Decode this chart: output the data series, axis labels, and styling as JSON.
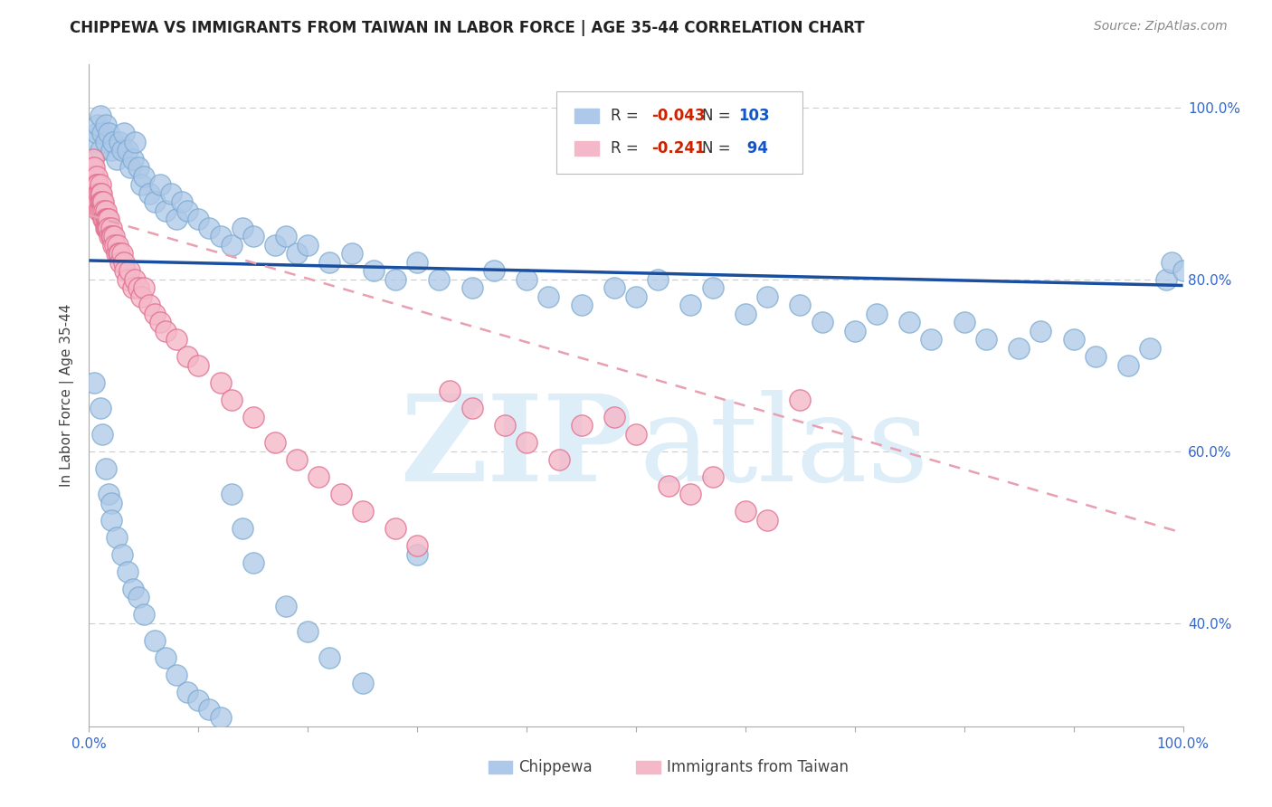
{
  "title": "CHIPPEWA VS IMMIGRANTS FROM TAIWAN IN LABOR FORCE | AGE 35-44 CORRELATION CHART",
  "source": "Source: ZipAtlas.com",
  "ylabel": "In Labor Force | Age 35-44",
  "xlim": [
    0.0,
    1.0
  ],
  "ylim": [
    0.28,
    1.05
  ],
  "blue_color": "#adc8e8",
  "blue_edge": "#7aaad0",
  "pink_color": "#f5b8c8",
  "pink_edge": "#e07090",
  "blue_line_color": "#1a4fa0",
  "pink_line_color": "#e8a0b0",
  "watermark_zip": "ZIP",
  "watermark_atlas": "atlas",
  "blue_x": [
    0.005,
    0.007,
    0.008,
    0.01,
    0.01,
    0.012,
    0.015,
    0.015,
    0.018,
    0.02,
    0.022,
    0.025,
    0.028,
    0.03,
    0.032,
    0.035,
    0.038,
    0.04,
    0.042,
    0.045,
    0.048,
    0.05,
    0.055,
    0.06,
    0.065,
    0.07,
    0.075,
    0.08,
    0.085,
    0.09,
    0.1,
    0.11,
    0.12,
    0.13,
    0.14,
    0.15,
    0.17,
    0.18,
    0.19,
    0.2,
    0.22,
    0.24,
    0.26,
    0.28,
    0.3,
    0.32,
    0.35,
    0.37,
    0.4,
    0.42,
    0.45,
    0.48,
    0.5,
    0.52,
    0.55,
    0.57,
    0.6,
    0.62,
    0.65,
    0.67,
    0.7,
    0.72,
    0.75,
    0.77,
    0.8,
    0.82,
    0.85,
    0.87,
    0.9,
    0.92,
    0.95,
    0.97,
    0.985,
    0.99,
    1.0,
    0.005,
    0.01,
    0.012,
    0.015,
    0.018,
    0.02,
    0.02,
    0.025,
    0.03,
    0.035,
    0.04,
    0.045,
    0.05,
    0.06,
    0.07,
    0.08,
    0.09,
    0.1,
    0.11,
    0.12,
    0.13,
    0.14,
    0.15,
    0.18,
    0.2,
    0.22,
    0.25,
    0.3
  ],
  "blue_y": [
    0.96,
    0.97,
    0.98,
    0.95,
    0.99,
    0.97,
    0.96,
    0.98,
    0.97,
    0.95,
    0.96,
    0.94,
    0.96,
    0.95,
    0.97,
    0.95,
    0.93,
    0.94,
    0.96,
    0.93,
    0.91,
    0.92,
    0.9,
    0.89,
    0.91,
    0.88,
    0.9,
    0.87,
    0.89,
    0.88,
    0.87,
    0.86,
    0.85,
    0.84,
    0.86,
    0.85,
    0.84,
    0.85,
    0.83,
    0.84,
    0.82,
    0.83,
    0.81,
    0.8,
    0.82,
    0.8,
    0.79,
    0.81,
    0.8,
    0.78,
    0.77,
    0.79,
    0.78,
    0.8,
    0.77,
    0.79,
    0.76,
    0.78,
    0.77,
    0.75,
    0.74,
    0.76,
    0.75,
    0.73,
    0.75,
    0.73,
    0.72,
    0.74,
    0.73,
    0.71,
    0.7,
    0.72,
    0.8,
    0.82,
    0.81,
    0.68,
    0.65,
    0.62,
    0.58,
    0.55,
    0.54,
    0.52,
    0.5,
    0.48,
    0.46,
    0.44,
    0.43,
    0.41,
    0.38,
    0.36,
    0.34,
    0.32,
    0.31,
    0.3,
    0.29,
    0.55,
    0.51,
    0.47,
    0.42,
    0.39,
    0.36,
    0.33,
    0.48
  ],
  "pink_x": [
    0.002,
    0.003,
    0.003,
    0.004,
    0.004,
    0.004,
    0.005,
    0.005,
    0.005,
    0.006,
    0.006,
    0.006,
    0.007,
    0.007,
    0.007,
    0.008,
    0.008,
    0.008,
    0.009,
    0.009,
    0.01,
    0.01,
    0.01,
    0.01,
    0.011,
    0.011,
    0.012,
    0.012,
    0.013,
    0.013,
    0.014,
    0.014,
    0.015,
    0.015,
    0.015,
    0.016,
    0.016,
    0.017,
    0.017,
    0.018,
    0.018,
    0.019,
    0.02,
    0.02,
    0.021,
    0.022,
    0.023,
    0.024,
    0.025,
    0.026,
    0.027,
    0.028,
    0.029,
    0.03,
    0.032,
    0.033,
    0.035,
    0.037,
    0.04,
    0.042,
    0.045,
    0.048,
    0.05,
    0.055,
    0.06,
    0.065,
    0.07,
    0.08,
    0.09,
    0.1,
    0.12,
    0.13,
    0.15,
    0.17,
    0.19,
    0.21,
    0.23,
    0.25,
    0.28,
    0.3,
    0.33,
    0.35,
    0.38,
    0.4,
    0.43,
    0.45,
    0.48,
    0.5,
    0.53,
    0.55,
    0.57,
    0.6,
    0.62,
    0.65
  ],
  "pink_y": [
    0.93,
    0.92,
    0.93,
    0.94,
    0.91,
    0.9,
    0.92,
    0.91,
    0.93,
    0.91,
    0.9,
    0.89,
    0.92,
    0.91,
    0.9,
    0.91,
    0.9,
    0.89,
    0.9,
    0.88,
    0.91,
    0.9,
    0.89,
    0.88,
    0.9,
    0.89,
    0.89,
    0.88,
    0.89,
    0.87,
    0.88,
    0.87,
    0.88,
    0.87,
    0.86,
    0.87,
    0.86,
    0.87,
    0.86,
    0.87,
    0.86,
    0.85,
    0.86,
    0.85,
    0.85,
    0.84,
    0.85,
    0.84,
    0.83,
    0.84,
    0.83,
    0.83,
    0.82,
    0.83,
    0.82,
    0.81,
    0.8,
    0.81,
    0.79,
    0.8,
    0.79,
    0.78,
    0.79,
    0.77,
    0.76,
    0.75,
    0.74,
    0.73,
    0.71,
    0.7,
    0.68,
    0.66,
    0.64,
    0.61,
    0.59,
    0.57,
    0.55,
    0.53,
    0.51,
    0.49,
    0.67,
    0.65,
    0.63,
    0.61,
    0.59,
    0.63,
    0.64,
    0.62,
    0.56,
    0.55,
    0.57,
    0.53,
    0.52,
    0.66
  ],
  "blue_line_x": [
    0.0,
    1.0
  ],
  "blue_line_y": [
    0.822,
    0.793
  ],
  "pink_line_x": [
    0.0,
    1.0
  ],
  "pink_line_y": [
    0.875,
    0.505
  ]
}
